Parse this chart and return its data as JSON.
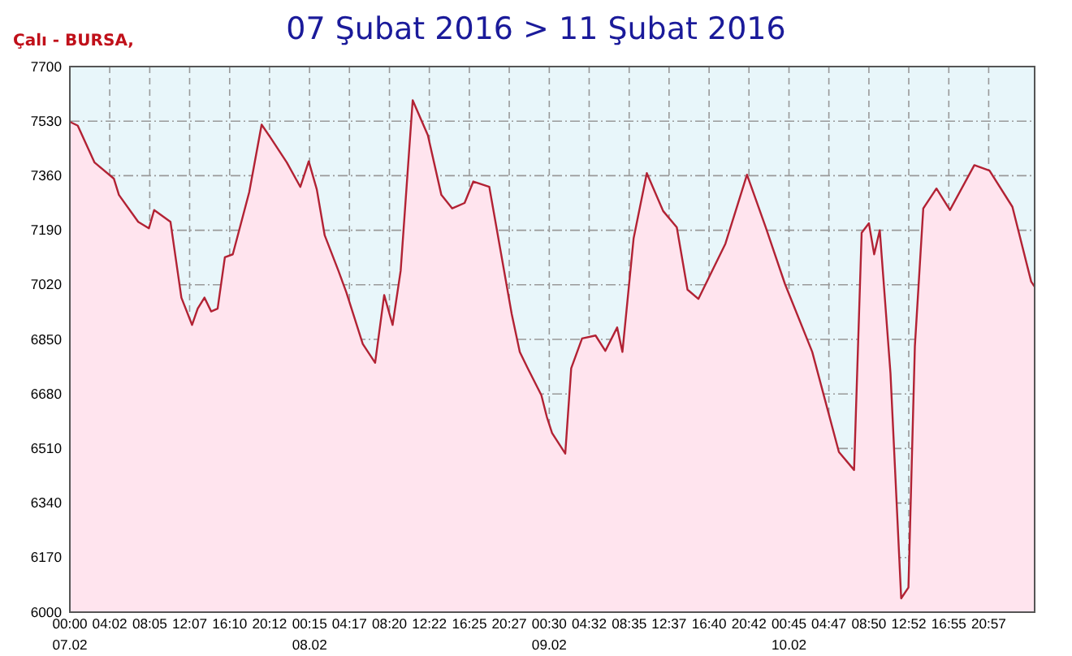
{
  "chart_data": {
    "type": "area",
    "title": "07 Şubat 2016 > 11 Şubat 2016",
    "subtitle": "Çalı - BURSA,",
    "x": [
      "2016-02-07T00:00",
      "2016-02-07T00:48",
      "2016-02-07T02:30",
      "2016-02-07T04:27",
      "2016-02-07T04:58",
      "2016-02-07T06:55",
      "2016-02-07T08:00",
      "2016-02-07T08:32",
      "2016-02-07T10:11",
      "2016-02-07T11:17",
      "2016-02-07T12:22",
      "2016-02-07T12:56",
      "2016-02-07T13:37",
      "2016-02-07T14:18",
      "2016-02-07T14:57",
      "2016-02-07T15:41",
      "2016-02-07T16:29",
      "2016-02-07T18:09",
      "2016-02-07T19:24",
      "2016-02-07T20:20",
      "2016-02-07T21:57",
      "2016-02-07T23:19",
      "2016-02-08T00:10",
      "2016-02-08T00:59",
      "2016-02-08T01:47",
      "2016-02-08T03:10",
      "2016-02-08T03:58",
      "2016-02-08T05:38",
      "2016-02-08T06:53",
      "2016-02-08T07:48",
      "2016-02-08T08:39",
      "2016-02-08T09:28",
      "2016-02-08T10:41",
      "2016-02-08T12:13",
      "2016-02-08T13:35",
      "2016-02-08T14:41",
      "2016-02-08T15:56",
      "2016-02-08T16:49",
      "2016-02-08T18:26",
      "2016-02-08T20:42",
      "2016-02-08T21:31",
      "2016-02-08T22:19",
      "2016-02-08T23:42",
      "2016-02-09T00:15",
      "2016-02-09T00:47",
      "2016-02-09T02:07",
      "2016-02-09T02:43",
      "2016-02-09T03:49",
      "2016-02-09T05:11",
      "2016-02-09T06:10",
      "2016-02-09T07:22",
      "2016-02-09T07:54",
      "2016-02-09T09:02",
      "2016-02-09T10:22",
      "2016-02-09T12:01",
      "2016-02-09T13:24",
      "2016-02-09T14:29",
      "2016-02-09T15:35",
      "2016-02-09T18:19",
      "2016-02-09T20:30",
      "2016-02-09T22:24",
      "2016-02-10T00:21",
      "2016-02-10T03:06",
      "2016-02-10T05:48",
      "2016-02-10T07:20",
      "2016-02-10T08:06",
      "2016-02-10T08:50",
      "2016-02-10T09:22",
      "2016-02-10T09:56",
      "2016-02-10T11:01",
      "2016-02-10T12:06",
      "2016-02-10T12:50",
      "2016-02-10T13:29",
      "2016-02-10T14:20",
      "2016-02-10T15:40",
      "2016-02-10T17:02",
      "2016-02-10T19:30",
      "2016-02-10T21:02",
      "2016-02-10T23:21",
      "2016-02-11T01:15",
      "2016-02-11T01:36"
    ],
    "series": [
      {
        "color": "#b22234",
        "values": [
          7528,
          7516,
          7401,
          7351,
          7300,
          7216,
          7196,
          7253,
          7216,
          6980,
          6895,
          6946,
          6980,
          6937,
          6946,
          7106,
          7115,
          7309,
          7519,
          7477,
          7401,
          7325,
          7405,
          7317,
          7174,
          7064,
          6997,
          6836,
          6777,
          6988,
          6895,
          7064,
          7595,
          7486,
          7300,
          7258,
          7275,
          7342,
          7325,
          6929,
          6811,
          6760,
          6676,
          6609,
          6558,
          6494,
          6760,
          6853,
          6862,
          6814,
          6887,
          6811,
          7165,
          7368,
          7250,
          7199,
          7005,
          6976,
          7148,
          7363,
          7199,
          7022,
          6811,
          6499,
          6443,
          7182,
          7212,
          7115,
          7190,
          6744,
          6043,
          6077,
          6828,
          7258,
          7320,
          7253,
          7393,
          7376,
          7263,
          7030,
          7014
        ]
      }
    ],
    "xlim": [
      "2016-02-07T00:00",
      "2016-02-11T01:36"
    ],
    "xticks": [
      {
        "value": "2016-02-07T00:00",
        "label": "00:00\n07.02"
      },
      {
        "value": "2016-02-07T04:02",
        "label": "04:02"
      },
      {
        "value": "2016-02-07T08:05",
        "label": "08:05"
      },
      {
        "value": "2016-02-07T12:07",
        "label": "12:07"
      },
      {
        "value": "2016-02-07T16:10",
        "label": "16:10"
      },
      {
        "value": "2016-02-07T20:12",
        "label": "20:12"
      },
      {
        "value": "2016-02-08T00:15",
        "label": "00:15\n08.02"
      },
      {
        "value": "2016-02-08T04:17",
        "label": "04:17"
      },
      {
        "value": "2016-02-08T08:20",
        "label": "08:20"
      },
      {
        "value": "2016-02-08T12:22",
        "label": "12:22"
      },
      {
        "value": "2016-02-08T16:25",
        "label": "16:25"
      },
      {
        "value": "2016-02-08T20:27",
        "label": "20:27"
      },
      {
        "value": "2016-02-09T00:30",
        "label": "00:30\n09.02"
      },
      {
        "value": "2016-02-09T04:32",
        "label": "04:32"
      },
      {
        "value": "2016-02-09T08:35",
        "label": "08:35"
      },
      {
        "value": "2016-02-09T12:37",
        "label": "12:37"
      },
      {
        "value": "2016-02-09T16:40",
        "label": "16:40"
      },
      {
        "value": "2016-02-09T20:42",
        "label": "20:42"
      },
      {
        "value": "2016-02-10T00:45",
        "label": "00:45\n10.02"
      },
      {
        "value": "2016-02-10T04:47",
        "label": "04:47"
      },
      {
        "value": "2016-02-10T08:50",
        "label": "08:50"
      },
      {
        "value": "2016-02-10T12:52",
        "label": "12:52"
      },
      {
        "value": "2016-02-10T16:55",
        "label": "16:55"
      },
      {
        "value": "2016-02-10T20:57",
        "label": "20:57"
      }
    ],
    "ylim": [
      6000,
      7700
    ],
    "yticks": [
      6000,
      6170,
      6340,
      6510,
      6680,
      6850,
      7020,
      7190,
      7360,
      7530,
      7700
    ],
    "grid": true,
    "line_style": "solid",
    "marker": "none"
  }
}
